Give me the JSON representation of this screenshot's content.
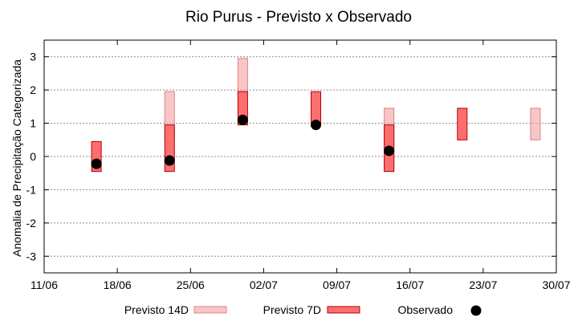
{
  "chart_data": {
    "type": "bar",
    "title": "Rio Purus - Previsto x Observado",
    "ylabel": "Anomalia de Precipitação Categorizada",
    "xlabel": "",
    "ylim": [
      -3.5,
      3.5
    ],
    "yticks": [
      -3,
      -2,
      -1,
      0,
      1,
      2,
      3
    ],
    "xlim": [
      "2024-06-11",
      "2024-07-30"
    ],
    "xtick_labels": [
      "11/06",
      "18/06",
      "25/06",
      "02/07",
      "09/07",
      "16/07",
      "23/07",
      "30/07"
    ],
    "grid": true,
    "legend_placement": "bottom",
    "series": [
      {
        "name": "Previsto 14D",
        "kind": "range",
        "color": "#f4a0a0",
        "points": [
          {
            "date": "2024-06-23",
            "low": 0.5,
            "high": 1.95
          },
          {
            "date": "2024-06-30",
            "low": 1.95,
            "high": 2.95
          },
          {
            "date": "2024-07-14",
            "low": -0.45,
            "high": 1.45
          },
          {
            "date": "2024-07-28",
            "low": 0.5,
            "high": 1.45
          }
        ]
      },
      {
        "name": "Previsto 7D",
        "kind": "range",
        "color": "#ff6e6e",
        "points": [
          {
            "date": "2024-06-16",
            "low": -0.45,
            "high": 0.45
          },
          {
            "date": "2024-06-23",
            "low": -0.45,
            "high": 0.95
          },
          {
            "date": "2024-06-30",
            "low": 0.95,
            "high": 1.95
          },
          {
            "date": "2024-07-07",
            "low": 0.95,
            "high": 1.95
          },
          {
            "date": "2024-07-14",
            "low": -0.45,
            "high": 0.95
          },
          {
            "date": "2024-07-21",
            "low": 0.5,
            "high": 1.45
          }
        ]
      },
      {
        "name": "Observado",
        "kind": "point",
        "color": "#000000",
        "points": [
          {
            "date": "2024-06-16",
            "value": -0.22
          },
          {
            "date": "2024-06-23",
            "value": -0.12
          },
          {
            "date": "2024-06-30",
            "value": 1.1
          },
          {
            "date": "2024-07-07",
            "value": 0.95
          },
          {
            "date": "2024-07-14",
            "value": 0.17
          }
        ]
      }
    ]
  }
}
